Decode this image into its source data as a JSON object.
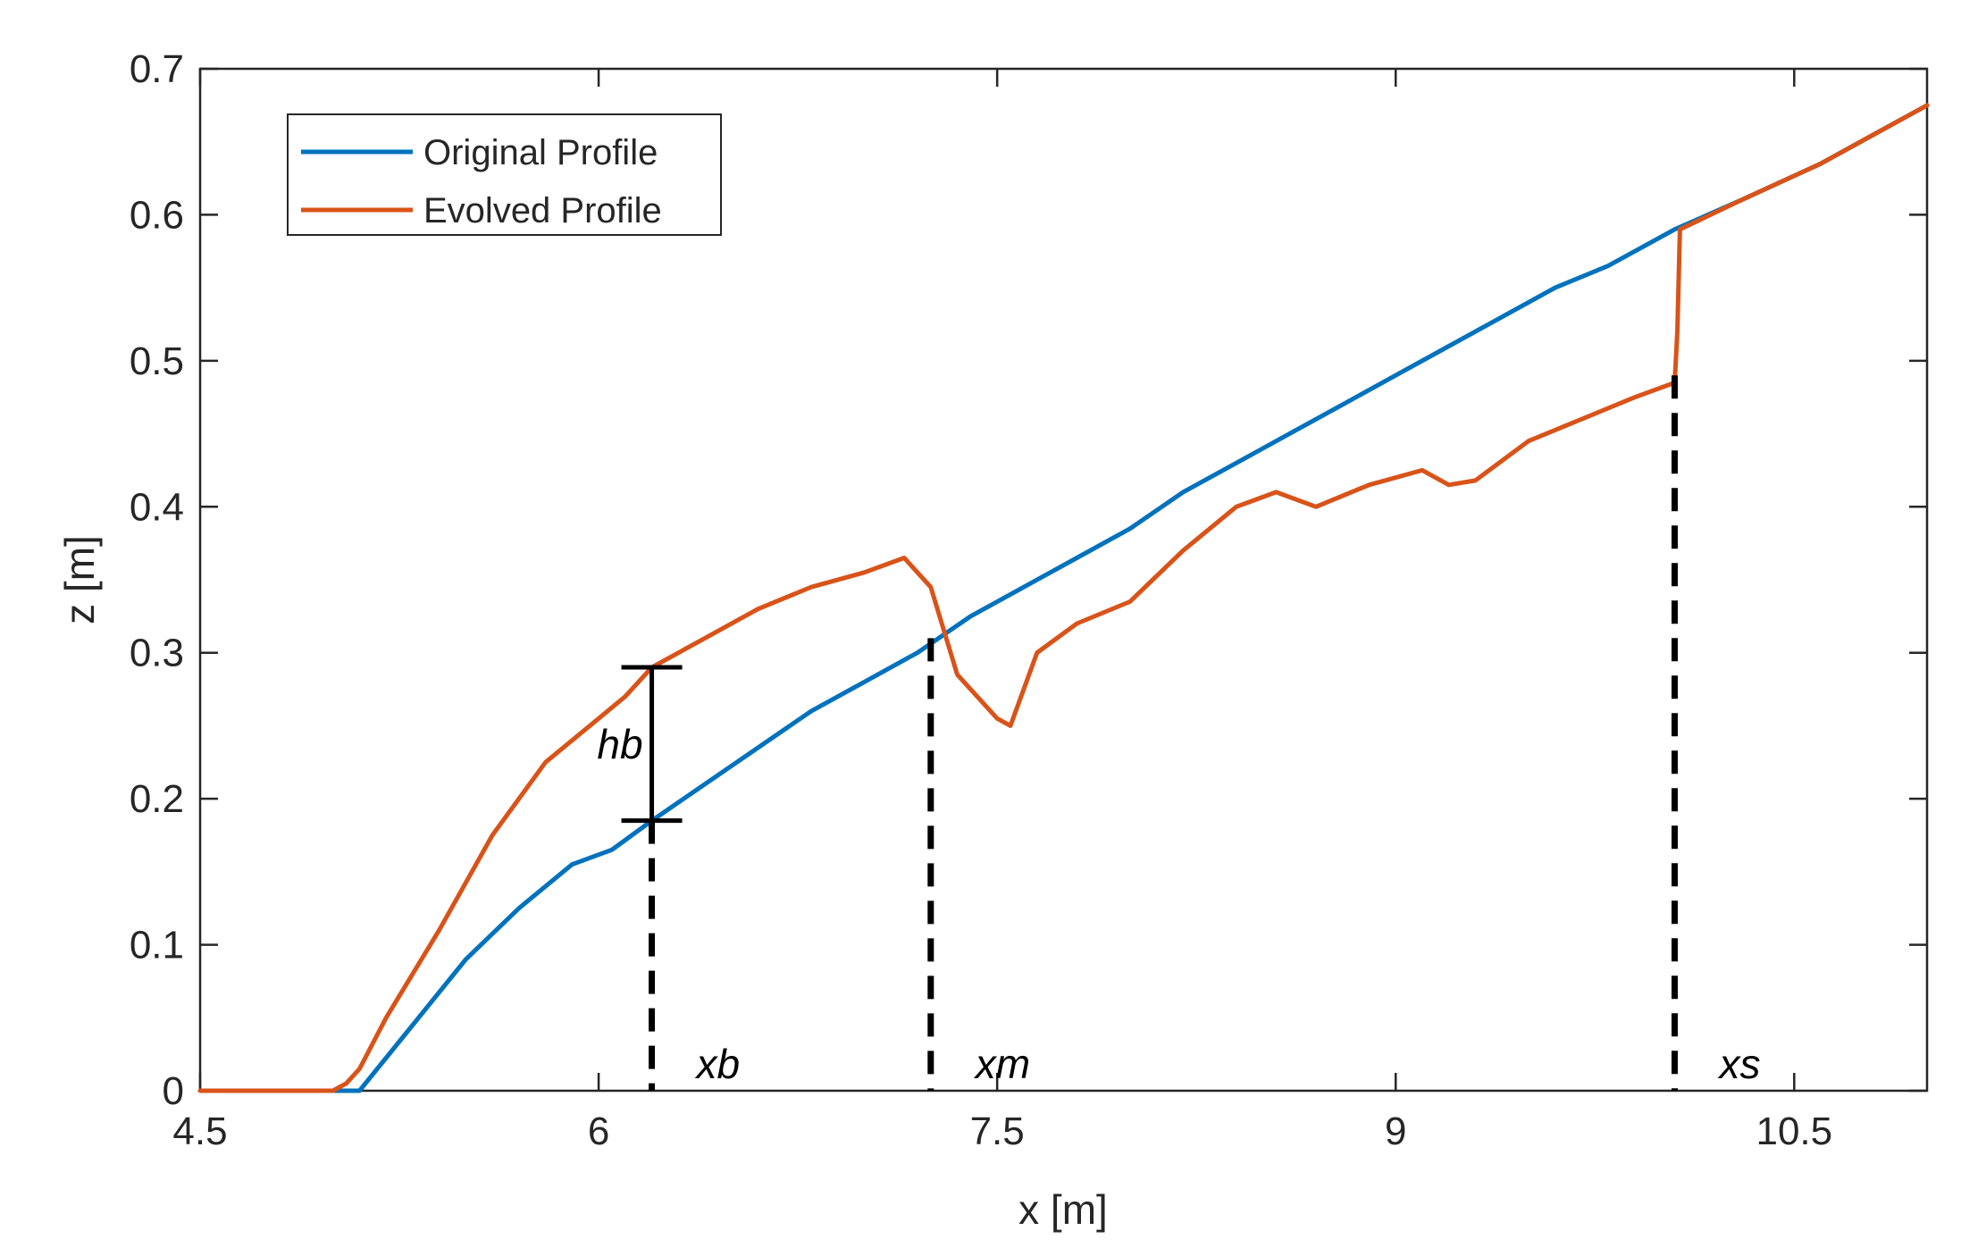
{
  "chart_data": {
    "type": "line",
    "title": "",
    "xlabel": "x [m]",
    "ylabel": "z [m]",
    "xlim": [
      4.5,
      11.0
    ],
    "ylim": [
      0,
      0.7
    ],
    "xticks": [
      4.5,
      6,
      7.5,
      9,
      10.5
    ],
    "xtick_labels": [
      "4.5",
      "6",
      "7.5",
      "9",
      "10.5"
    ],
    "yticks": [
      0,
      0.1,
      0.2,
      0.3,
      0.4,
      0.5,
      0.6,
      0.7
    ],
    "ytick_labels": [
      "0",
      "0.1",
      "0.2",
      "0.3",
      "0.4",
      "0.5",
      "0.6",
      "0.7"
    ],
    "grid": false,
    "legend_position": "top-left",
    "colors": {
      "original": "#0072BD",
      "evolved": "#D95319",
      "annotation": "#000000",
      "axis": "#262626"
    },
    "series": [
      {
        "name": "Original Profile",
        "x": [
          5.0,
          5.1,
          5.3,
          5.5,
          5.7,
          5.9,
          6.05,
          6.2,
          6.4,
          6.6,
          6.8,
          7.0,
          7.2,
          7.4,
          7.6,
          7.8,
          8.0,
          8.2,
          8.4,
          8.6,
          8.8,
          9.0,
          9.2,
          9.4,
          9.6,
          9.8,
          10.05,
          10.3,
          10.6,
          10.8,
          11.0
        ],
        "y": [
          0,
          0,
          0.045,
          0.09,
          0.125,
          0.155,
          0.165,
          0.185,
          0.21,
          0.235,
          0.26,
          0.28,
          0.3,
          0.325,
          0.345,
          0.365,
          0.385,
          0.41,
          0.43,
          0.45,
          0.47,
          0.49,
          0.51,
          0.53,
          0.55,
          0.565,
          0.59,
          0.61,
          0.635,
          0.655,
          0.675
        ]
      },
      {
        "name": "Evolved Profile",
        "x": [
          4.5,
          5.0,
          5.05,
          5.1,
          5.2,
          5.4,
          5.6,
          5.8,
          5.9,
          6.0,
          6.1,
          6.2,
          6.4,
          6.6,
          6.8,
          7.0,
          7.15,
          7.25,
          7.35,
          7.5,
          7.55,
          7.65,
          7.8,
          8.0,
          8.2,
          8.4,
          8.55,
          8.7,
          8.9,
          9.1,
          9.2,
          9.3,
          9.5,
          9.7,
          9.9,
          10.05,
          10.06,
          10.07,
          10.3,
          10.6,
          10.8,
          11.0
        ],
        "y": [
          0,
          0,
          0.005,
          0.015,
          0.05,
          0.11,
          0.175,
          0.225,
          0.24,
          0.255,
          0.27,
          0.29,
          0.31,
          0.33,
          0.345,
          0.355,
          0.365,
          0.345,
          0.285,
          0.255,
          0.25,
          0.3,
          0.32,
          0.335,
          0.37,
          0.4,
          0.41,
          0.4,
          0.415,
          0.425,
          0.415,
          0.418,
          0.445,
          0.46,
          0.475,
          0.485,
          0.52,
          0.59,
          0.61,
          0.635,
          0.655,
          0.675
        ]
      }
    ],
    "annotations": [
      {
        "label": "hb",
        "type": "errorbar",
        "x": 6.2,
        "y_low": 0.185,
        "y_high": 0.29
      },
      {
        "label": "xb",
        "type": "dashed-vline",
        "x": 6.2,
        "y_top": 0.185
      },
      {
        "label": "xm",
        "type": "dashed-vline",
        "x": 7.25,
        "y_top": 0.31
      },
      {
        "label": "xs",
        "type": "dashed-vline",
        "x": 10.05,
        "y_top": 0.49
      }
    ]
  }
}
